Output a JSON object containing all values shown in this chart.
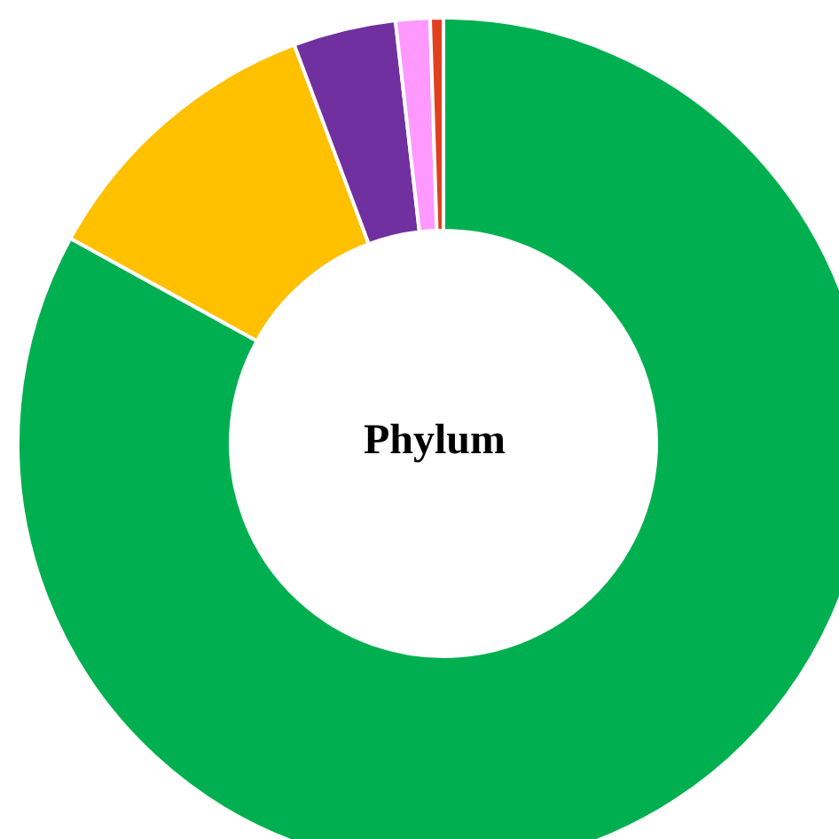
{
  "chart_data": {
    "type": "donut",
    "title": "Phylum",
    "categories": [
      null,
      null,
      null,
      null,
      null
    ],
    "values": [
      83.0,
      11.3,
      3.9,
      1.3,
      0.5
    ],
    "colors": [
      "#00b050",
      "#ffc000",
      "#7030a0",
      "#ff99ff",
      "#e04020"
    ],
    "legend": false
  }
}
